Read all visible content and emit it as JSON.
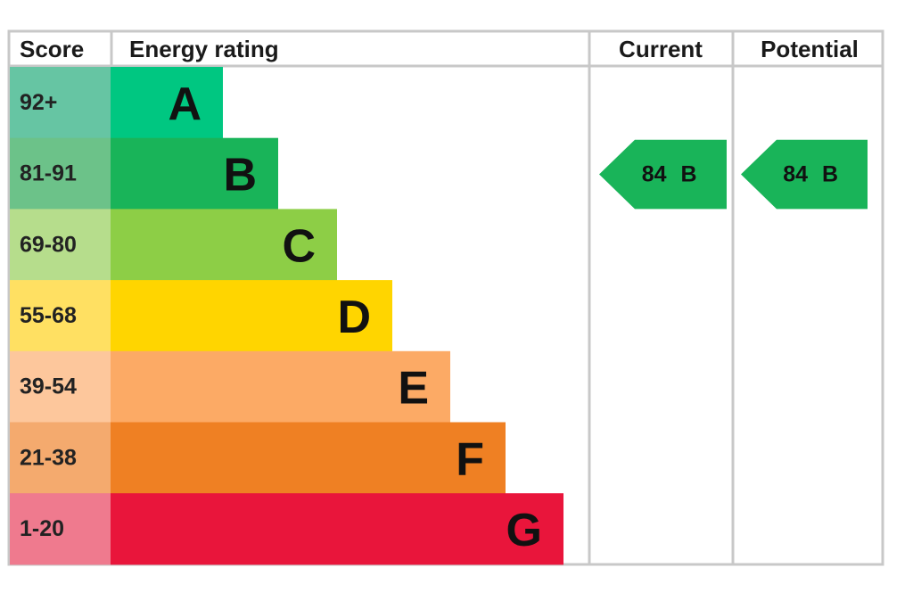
{
  "header": {
    "score": "Score",
    "rating": "Energy rating",
    "current": "Current",
    "potential": "Potential"
  },
  "rows": [
    {
      "score": "92+",
      "band": "A",
      "color": "#00c781",
      "score_color": "#66c5a3"
    },
    {
      "score": "81-91",
      "band": "B",
      "color": "#19b459",
      "score_color": "#6cc289"
    },
    {
      "score": "69-80",
      "band": "C",
      "color": "#8dce46",
      "score_color": "#b6dd8c"
    },
    {
      "score": "55-68",
      "band": "D",
      "color": "#ffd500",
      "score_color": "#ffe062"
    },
    {
      "score": "39-54",
      "band": "E",
      "color": "#fcaa65",
      "score_color": "#fdc79c"
    },
    {
      "score": "21-38",
      "band": "F",
      "color": "#ef8023",
      "score_color": "#f4aa6e"
    },
    {
      "score": "1-20",
      "band": "G",
      "color": "#e9153b",
      "score_color": "#ef7a8e"
    }
  ],
  "current": {
    "score": 84,
    "band": "B"
  },
  "potential": {
    "score": 84,
    "band": "B"
  }
}
